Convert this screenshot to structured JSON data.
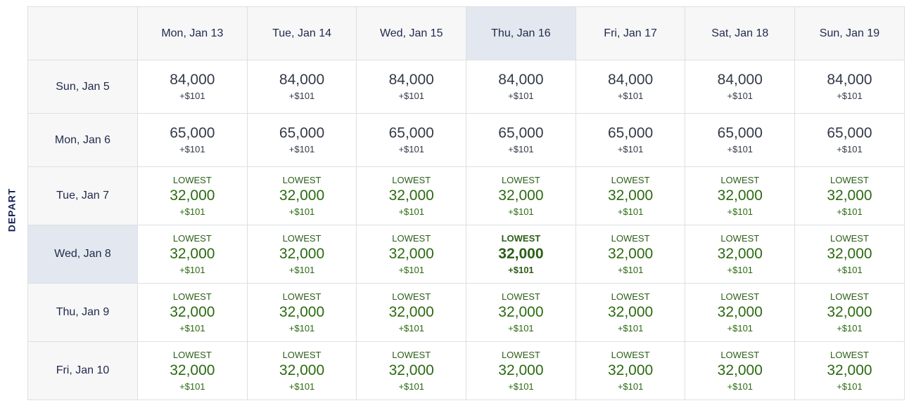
{
  "depart_label": "DEPART",
  "columns": [
    "Mon, Jan 13",
    "Tue, Jan 14",
    "Wed, Jan 15",
    "Thu, Jan 16",
    "Fri, Jan 17",
    "Sat, Jan 18",
    "Sun, Jan 19"
  ],
  "highlight": {
    "column": 3,
    "row": 3
  },
  "rows": [
    {
      "label": "Sun, Jan 5",
      "lowest": false,
      "miles": "84,000",
      "fee": "+$101",
      "tag": ""
    },
    {
      "label": "Mon, Jan 6",
      "lowest": false,
      "miles": "65,000",
      "fee": "+$101",
      "tag": ""
    },
    {
      "label": "Tue, Jan 7",
      "lowest": true,
      "miles": "32,000",
      "fee": "+$101",
      "tag": "LOWEST"
    },
    {
      "label": "Wed, Jan 8",
      "lowest": true,
      "miles": "32,000",
      "fee": "+$101",
      "tag": "LOWEST"
    },
    {
      "label": "Thu, Jan 9",
      "lowest": true,
      "miles": "32,000",
      "fee": "+$101",
      "tag": "LOWEST"
    },
    {
      "label": "Fri, Jan 10",
      "lowest": true,
      "miles": "32,000",
      "fee": "+$101",
      "tag": "LOWEST"
    }
  ],
  "colors": {
    "lowest_green": "#2b6a10",
    "text_dark": "#333a48",
    "header_bg": "#f7f7f8",
    "highlight_bg": "#e3e8f0",
    "border": "#dcdfe3",
    "depart_navy": "#1a2558"
  }
}
